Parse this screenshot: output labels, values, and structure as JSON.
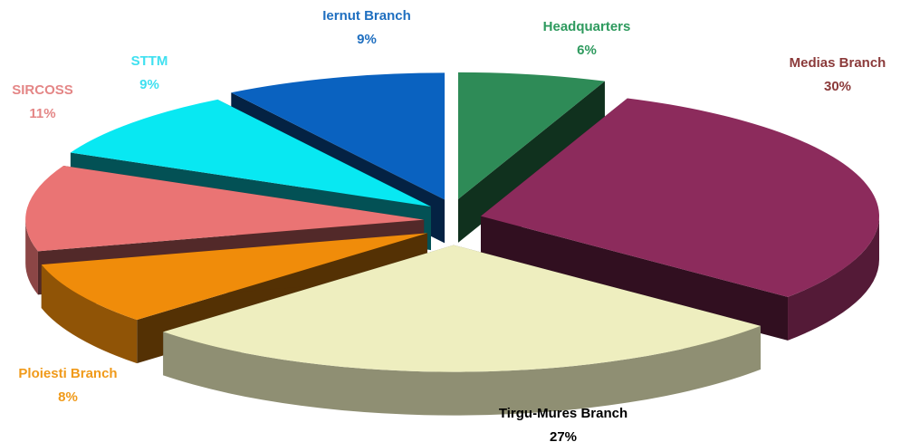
{
  "chart_data": {
    "type": "pie3d",
    "categories": [
      "Headquarters",
      "Medias Branch",
      "Tirgu-Mures Branch",
      "Ploiesti Branch",
      "SIRCOSS",
      "STTM",
      "Iernut Branch"
    ],
    "values": [
      6,
      30,
      27,
      8,
      11,
      9,
      9
    ],
    "value_labels": [
      "6%",
      "30%",
      "27%",
      "8%",
      "11%",
      "9%",
      "9%"
    ],
    "colors": [
      "#2e8b57",
      "#8c2b5c",
      "#eeeebf",
      "#f08c0a",
      "#ea7474",
      "#08e8f2",
      "#0a62c0"
    ],
    "label_colors": [
      "#2e9a5e",
      "#8b3a3a",
      "#000000",
      "#f09a1a",
      "#e48686",
      "#3fe0f0",
      "#1f6fc0"
    ]
  }
}
